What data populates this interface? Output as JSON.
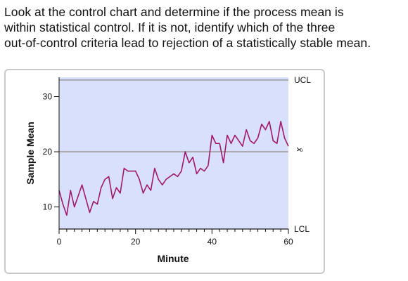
{
  "question": {
    "lines": [
      "Look at the control chart and determine if the process mean is",
      "within statistical control. If it is not, identify which of the three",
      "out-of-control criteria lead to rejection of a statistically stable mean."
    ]
  },
  "colors": {
    "plot_bg": "#d9e0fb",
    "series": "#a0186a",
    "limit_line": "#9a9a9a"
  },
  "chart_data": {
    "type": "line",
    "xlabel": "Minute",
    "ylabel": "Sample Mean",
    "xlim": [
      0,
      60
    ],
    "ylim": [
      6,
      33.5
    ],
    "xticks": [
      0,
      20,
      40,
      60
    ],
    "yticks": [
      10,
      20,
      30
    ],
    "grid": false,
    "limits": [
      {
        "name": "UCL",
        "value": 33
      },
      {
        "name": "x̄",
        "value": 20
      },
      {
        "name": "LCL",
        "value": 6
      }
    ],
    "series": [
      {
        "x": [
          0,
          1,
          2,
          3,
          4,
          5,
          6,
          7,
          8,
          9,
          10,
          11,
          12,
          13,
          14,
          15,
          16,
          17,
          18,
          19,
          20,
          21,
          22,
          23,
          24,
          25,
          26,
          27,
          28,
          29,
          30,
          31,
          32,
          33,
          34,
          35,
          36,
          37,
          38,
          39,
          40,
          41,
          42,
          43,
          44,
          45,
          46,
          47,
          48,
          49,
          50,
          51,
          52,
          53,
          54,
          55,
          56,
          57,
          58,
          59,
          60
        ],
        "y": [
          13,
          10.5,
          8.5,
          13,
          10,
          12,
          14,
          11.5,
          9,
          11,
          10.5,
          13.5,
          15,
          15.5,
          11.5,
          13.5,
          12.5,
          17,
          16.5,
          16.5,
          16.5,
          15,
          12.5,
          14,
          13,
          17,
          15,
          14,
          15,
          15.5,
          16,
          15.5,
          16.5,
          20,
          18,
          19,
          16,
          17,
          16.5,
          17.5,
          23,
          21.5,
          21.5,
          18,
          23,
          21.5,
          23,
          22,
          21,
          24,
          22,
          21.5,
          22.5,
          25,
          24,
          25.5,
          22,
          21.5,
          25.5,
          22.5,
          21
        ]
      }
    ]
  }
}
